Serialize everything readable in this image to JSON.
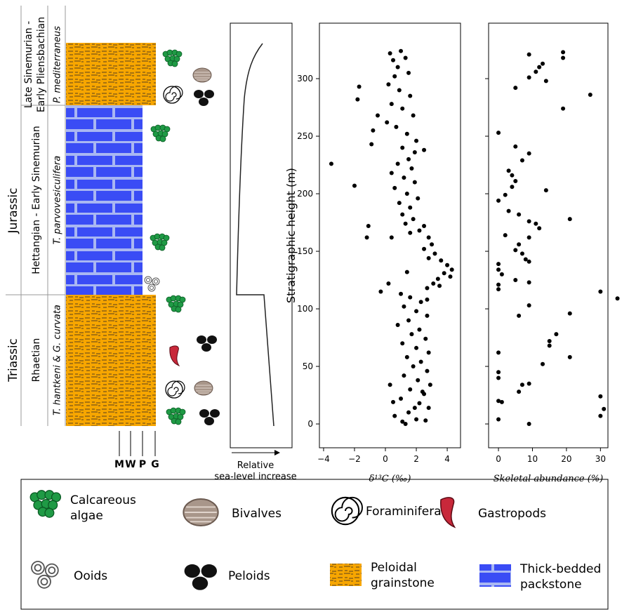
{
  "chart_data": [
    {
      "type": "scatter",
      "x_label": "δ¹³C (‰)",
      "y_label": "Stratigraphic height (m)",
      "color": "#000000",
      "xlim": [
        -4.27,
        4.86
      ],
      "ylim": [
        -20.7,
        348.2
      ],
      "xticks": [
        {
          "value": -4,
          "label": "−4"
        },
        {
          "value": -2,
          "label": "−2"
        },
        0,
        2,
        4
      ],
      "yticks": [
        0,
        50,
        100,
        150,
        200,
        250,
        300
      ],
      "x": [
        -3.5,
        -2,
        -1.8,
        -1.7,
        -1.2,
        -1.1,
        -0.9,
        -0.8,
        -0.5,
        -0.3,
        0.2,
        0.4,
        0.3,
        0.5,
        0.8,
        1,
        1.3,
        0.6,
        1.5,
        0.2,
        0.9,
        1.6,
        0.4,
        1.1,
        1.8,
        0.1,
        0.7,
        1.4,
        2,
        1.1,
        1.9,
        2.5,
        1.5,
        0.8,
        1.7,
        0.4,
        1.2,
        1.9,
        0.6,
        1.4,
        2.1,
        0.9,
        1.6,
        1.1,
        1.8,
        1.3,
        2.5,
        2.2,
        1.6,
        2.8,
        3,
        2.5,
        3.2,
        2.8,
        3.6,
        4,
        4.3,
        3.8,
        4.2,
        3.4,
        3.1,
        2.7,
        3.5,
        1,
        1.6,
        2.3,
        1.2,
        2,
        2.7,
        1.5,
        0.8,
        2.2,
        1.7,
        2.6,
        1.1,
        2,
        2.8,
        1.4,
        2.3,
        1.8,
        2.7,
        1.2,
        2.1,
        2.9,
        0.3,
        1.6,
        2.5,
        1,
        2.2,
        2.8,
        1.5,
        0.6,
        2,
        1.1,
        2.6,
        1.3,
        0.5,
        2.4,
        1.9,
        2.7,
        1.4
      ],
      "values": [
        226,
        207,
        282,
        293,
        162,
        172,
        243,
        255,
        268,
        115,
        122,
        162,
        322,
        316,
        310,
        324,
        318,
        302,
        305,
        295,
        290,
        285,
        278,
        274,
        268,
        262,
        258,
        252,
        246,
        240,
        236,
        238,
        230,
        226,
        222,
        218,
        214,
        210,
        205,
        200,
        196,
        192,
        188,
        182,
        178,
        174,
        172,
        168,
        166,
        162,
        156,
        152,
        148,
        144,
        142,
        138,
        134,
        131,
        128,
        126,
        122,
        118,
        120,
        113,
        110,
        106,
        102,
        98,
        94,
        90,
        86,
        82,
        78,
        74,
        70,
        66,
        62,
        58,
        54,
        50,
        46,
        42,
        38,
        34,
        34,
        30,
        26,
        22,
        18,
        14,
        10,
        7,
        4,
        2,
        3,
        0,
        19,
        28,
        14,
        108,
        132
      ]
    },
    {
      "type": "scatter",
      "x_label": "Skeletal abundance (%)",
      "color": "#000000",
      "xlim": [
        -2.9,
        32.2
      ],
      "ylim": [
        -20.7,
        348.2
      ],
      "xticks": [
        0,
        10,
        20,
        30
      ],
      "x": [
        19,
        9,
        19,
        13,
        12,
        11,
        9,
        14,
        5,
        27,
        19,
        0,
        5,
        9,
        7,
        3,
        4,
        5,
        4,
        14,
        2,
        0,
        3,
        6,
        9,
        21,
        11,
        12,
        2,
        9,
        6,
        5,
        7,
        8,
        9,
        0,
        0,
        1,
        5,
        9,
        0,
        0,
        30,
        35,
        9,
        21,
        6,
        17,
        15,
        15,
        13,
        21,
        0,
        0,
        0,
        7,
        9,
        6,
        30,
        0,
        31,
        30,
        0,
        9,
        1
      ],
      "values": [
        323,
        321,
        318,
        313,
        310,
        306,
        301,
        298,
        292,
        286,
        274,
        253,
        241,
        235,
        229,
        220,
        216,
        211,
        206,
        203,
        199,
        194,
        185,
        182,
        176,
        178,
        174,
        170,
        164,
        162,
        156,
        151,
        148,
        143,
        141,
        139,
        134,
        130,
        125,
        123,
        121,
        117,
        115,
        109,
        103,
        96,
        94,
        78,
        72,
        68,
        52,
        58,
        62,
        45,
        40,
        34,
        35,
        28,
        24,
        20,
        13,
        7,
        4,
        0,
        19
      ]
    }
  ],
  "column": {
    "periods": [
      "Jurassic",
      "Triassic"
    ],
    "ages": [
      [
        "Late Sinemurian -",
        "Early Pliensbachian"
      ],
      [
        "Hettangian - Early Sinemurian"
      ],
      [
        "Rhaetian"
      ]
    ],
    "biozones": [
      "P. mediterraneus",
      "T. parvovesiculifera",
      "T. hantkeni & G. curvata"
    ],
    "texture_labels": [
      "M",
      "W",
      "P",
      "G"
    ]
  },
  "sea_level": {
    "label_lines": [
      "Relative",
      "sea-level increase"
    ]
  },
  "legend": {
    "items": [
      [
        "Calcareous",
        "algae"
      ],
      [
        "Bivalves"
      ],
      [
        "Foraminifera"
      ],
      [
        "Gastropods"
      ],
      [
        "Ooids"
      ],
      [
        "Peloids"
      ],
      [
        "Peloidal",
        "grainstone"
      ],
      [
        "Thick-bedded",
        "packstone"
      ]
    ]
  }
}
